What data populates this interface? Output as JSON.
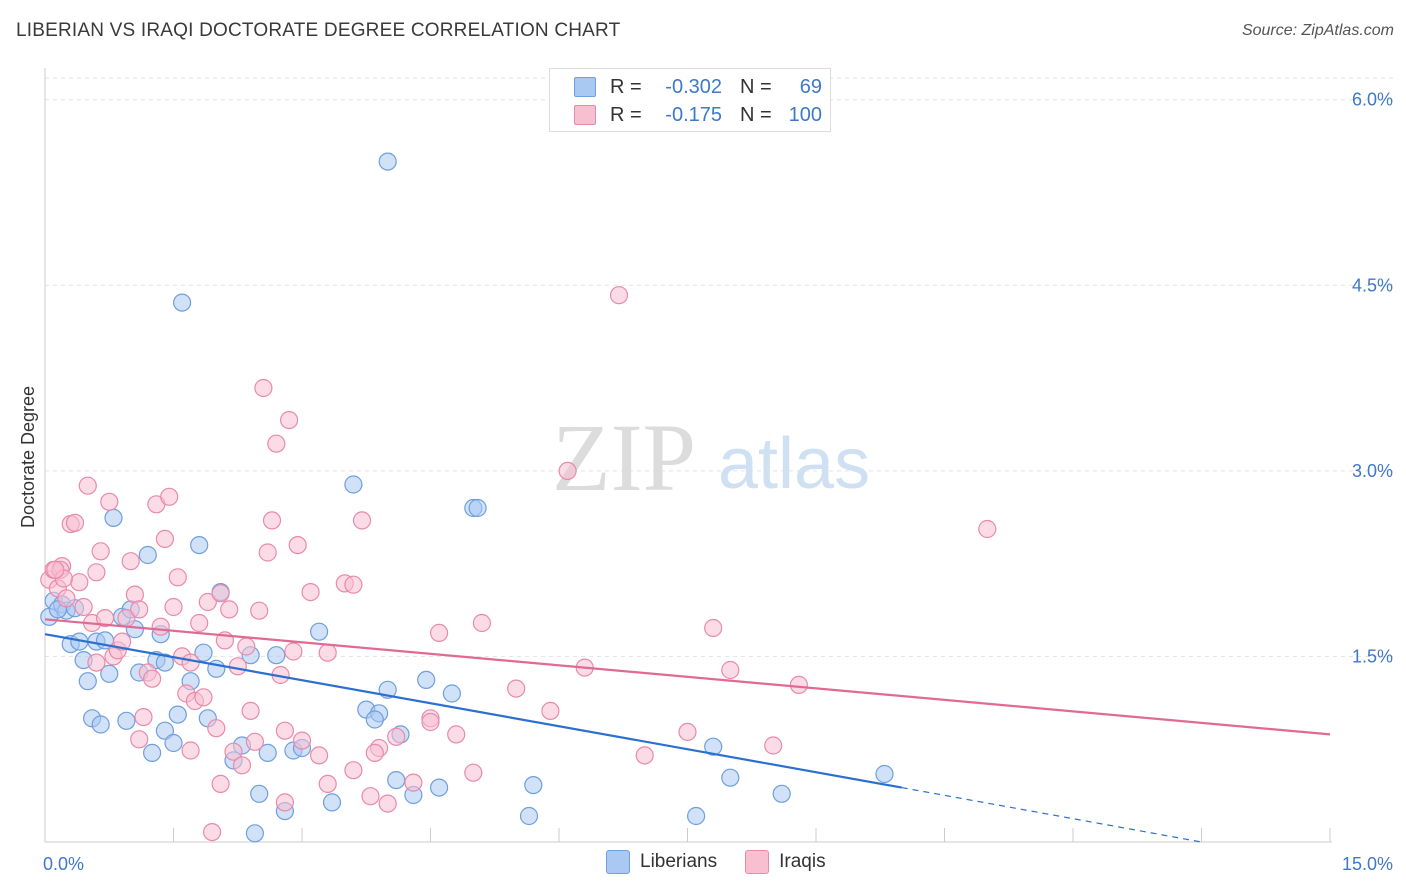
{
  "header": {
    "title": "LIBERIAN VS IRAQI DOCTORATE DEGREE CORRELATION CHART",
    "source": "Source: ZipAtlas.com"
  },
  "watermark": {
    "zip": "ZIP",
    "atlas": "atlas"
  },
  "legend": {
    "rows": [
      {
        "r_label": "R =",
        "r_value": "-0.302",
        "n_label": "N =",
        "n_value": "69",
        "color": "#a9c8f2",
        "border": "#6f9fdc"
      },
      {
        "r_label": "R =",
        "r_value": "-0.175",
        "n_label": "N =",
        "n_value": "100",
        "color": "#f8bfd1",
        "border": "#e98aa9"
      }
    ]
  },
  "bottom_legend": [
    {
      "label": "Liberians",
      "color": "#a9c8f2",
      "border": "#6f9fdc"
    },
    {
      "label": "Iraqis",
      "color": "#f8bfd1",
      "border": "#e98aa9"
    }
  ],
  "chart_data": {
    "type": "scatter",
    "title": "LIBERIAN VS IRAQI DOCTORATE DEGREE CORRELATION CHART",
    "xlabel": "",
    "ylabel": "Doctorate Degree",
    "xlim": [
      0,
      15
    ],
    "ylim": [
      0,
      6.2
    ],
    "x_tick_labels": [
      "0.0%",
      "15.0%"
    ],
    "y_ticks": [
      1.5,
      3.0,
      4.5,
      6.0
    ],
    "y_tick_labels": [
      "1.5%",
      "3.0%",
      "4.5%",
      "6.0%"
    ],
    "grid": true,
    "legend_position": "top-center",
    "series": [
      {
        "name": "Liberians",
        "color": "#6f9fdc",
        "fill": "#a9c8f2",
        "trend_color": "#2b6fd0",
        "trend": {
          "x0": 0,
          "y0": 1.68,
          "x1": 10.0,
          "y1": 0.44,
          "dash_to_x": 13.5,
          "dash_to_y": 0.0
        },
        "points": [
          [
            0.05,
            1.82
          ],
          [
            0.1,
            1.95
          ],
          [
            0.2,
            1.92
          ],
          [
            0.25,
            1.87
          ],
          [
            0.3,
            1.6
          ],
          [
            0.35,
            1.89
          ],
          [
            0.4,
            1.62
          ],
          [
            0.45,
            1.47
          ],
          [
            0.5,
            1.3
          ],
          [
            0.55,
            1.0
          ],
          [
            0.6,
            1.62
          ],
          [
            0.65,
            0.95
          ],
          [
            0.7,
            1.63
          ],
          [
            0.75,
            1.36
          ],
          [
            0.8,
            2.62
          ],
          [
            0.9,
            1.82
          ],
          [
            0.95,
            0.98
          ],
          [
            1.0,
            1.88
          ],
          [
            1.05,
            1.72
          ],
          [
            1.1,
            1.37
          ],
          [
            1.2,
            2.32
          ],
          [
            1.25,
            0.72
          ],
          [
            1.3,
            1.47
          ],
          [
            1.35,
            1.68
          ],
          [
            1.4,
            0.9
          ],
          [
            1.5,
            0.8
          ],
          [
            1.55,
            1.03
          ],
          [
            1.6,
            4.36
          ],
          [
            1.7,
            1.3
          ],
          [
            1.8,
            2.4
          ],
          [
            1.85,
            1.53
          ],
          [
            1.9,
            1.0
          ],
          [
            2.0,
            1.4
          ],
          [
            2.05,
            2.02
          ],
          [
            2.2,
            0.66
          ],
          [
            2.3,
            0.78
          ],
          [
            2.4,
            1.51
          ],
          [
            2.45,
            0.07
          ],
          [
            2.5,
            0.39
          ],
          [
            2.6,
            0.72
          ],
          [
            2.7,
            1.51
          ],
          [
            2.8,
            0.25
          ],
          [
            2.9,
            0.74
          ],
          [
            3.0,
            0.76
          ],
          [
            3.2,
            1.7
          ],
          [
            3.35,
            0.32
          ],
          [
            3.6,
            2.89
          ],
          [
            3.75,
            1.07
          ],
          [
            3.9,
            1.04
          ],
          [
            4.0,
            5.5
          ],
          [
            4.1,
            0.5
          ],
          [
            4.15,
            0.87
          ],
          [
            4.3,
            0.38
          ],
          [
            4.45,
            1.31
          ],
          [
            4.6,
            0.44
          ],
          [
            4.75,
            1.2
          ],
          [
            5.0,
            2.7
          ],
          [
            5.05,
            2.7
          ],
          [
            5.65,
            0.21
          ],
          [
            5.7,
            0.46
          ],
          [
            7.6,
            0.21
          ],
          [
            7.8,
            0.77
          ],
          [
            8.0,
            0.52
          ],
          [
            8.6,
            0.39
          ],
          [
            9.8,
            0.55
          ],
          [
            1.4,
            1.45
          ],
          [
            0.15,
            1.88
          ],
          [
            3.85,
            0.99
          ],
          [
            4.0,
            1.23
          ]
        ]
      },
      {
        "name": "Iraqis",
        "color": "#e98aa9",
        "fill": "#f8bfd1",
        "trend_color": "#e06a93",
        "trend": {
          "x0": 0,
          "y0": 1.8,
          "x1": 15.0,
          "y1": 0.87
        },
        "points": [
          [
            0.05,
            2.12
          ],
          [
            0.1,
            2.2
          ],
          [
            0.15,
            2.05
          ],
          [
            0.2,
            2.23
          ],
          [
            0.25,
            1.97
          ],
          [
            0.3,
            2.57
          ],
          [
            0.35,
            2.58
          ],
          [
            0.4,
            2.1
          ],
          [
            0.45,
            1.9
          ],
          [
            0.5,
            2.88
          ],
          [
            0.55,
            1.77
          ],
          [
            0.6,
            1.45
          ],
          [
            0.65,
            2.35
          ],
          [
            0.7,
            1.81
          ],
          [
            0.75,
            2.75
          ],
          [
            0.8,
            1.5
          ],
          [
            0.85,
            1.55
          ],
          [
            0.9,
            1.62
          ],
          [
            0.95,
            1.81
          ],
          [
            1.0,
            2.27
          ],
          [
            1.05,
            2.0
          ],
          [
            1.1,
            1.88
          ],
          [
            1.15,
            1.01
          ],
          [
            1.2,
            1.37
          ],
          [
            1.25,
            1.32
          ],
          [
            1.3,
            2.73
          ],
          [
            1.35,
            1.74
          ],
          [
            1.4,
            2.45
          ],
          [
            1.45,
            2.79
          ],
          [
            1.5,
            1.9
          ],
          [
            1.55,
            2.14
          ],
          [
            1.6,
            1.5
          ],
          [
            1.65,
            1.2
          ],
          [
            1.7,
            1.45
          ],
          [
            1.75,
            1.14
          ],
          [
            1.8,
            1.77
          ],
          [
            1.85,
            1.17
          ],
          [
            1.9,
            1.94
          ],
          [
            1.95,
            0.08
          ],
          [
            2.0,
            0.92
          ],
          [
            2.05,
            2.01
          ],
          [
            2.1,
            1.63
          ],
          [
            2.15,
            1.88
          ],
          [
            2.2,
            0.73
          ],
          [
            2.25,
            1.42
          ],
          [
            2.3,
            0.62
          ],
          [
            2.35,
            1.58
          ],
          [
            2.4,
            1.06
          ],
          [
            2.45,
            0.81
          ],
          [
            2.5,
            1.87
          ],
          [
            2.55,
            3.67
          ],
          [
            2.6,
            2.34
          ],
          [
            2.65,
            2.6
          ],
          [
            2.7,
            3.22
          ],
          [
            2.75,
            1.35
          ],
          [
            2.8,
            0.32
          ],
          [
            2.85,
            3.41
          ],
          [
            2.9,
            1.54
          ],
          [
            2.95,
            2.4
          ],
          [
            3.0,
            0.82
          ],
          [
            3.1,
            2.02
          ],
          [
            3.2,
            0.7
          ],
          [
            3.3,
            0.47
          ],
          [
            3.5,
            2.09
          ],
          [
            3.6,
            0.58
          ],
          [
            3.7,
            2.6
          ],
          [
            3.8,
            0.37
          ],
          [
            3.9,
            0.76
          ],
          [
            4.0,
            0.31
          ],
          [
            4.1,
            0.85
          ],
          [
            4.3,
            0.48
          ],
          [
            4.5,
            1.0
          ],
          [
            4.6,
            1.69
          ],
          [
            4.8,
            0.87
          ],
          [
            5.0,
            0.56
          ],
          [
            5.1,
            1.77
          ],
          [
            5.5,
            1.24
          ],
          [
            5.9,
            1.06
          ],
          [
            6.1,
            3.0
          ],
          [
            6.3,
            1.41
          ],
          [
            6.7,
            4.42
          ],
          [
            7.0,
            0.7
          ],
          [
            7.5,
            0.89
          ],
          [
            7.8,
            1.73
          ],
          [
            8.0,
            1.39
          ],
          [
            8.5,
            0.78
          ],
          [
            8.8,
            1.27
          ],
          [
            11.0,
            2.53
          ],
          [
            0.18,
            2.2
          ],
          [
            0.22,
            2.13
          ],
          [
            0.6,
            2.18
          ],
          [
            1.7,
            0.74
          ],
          [
            2.8,
            0.9
          ],
          [
            3.3,
            1.53
          ],
          [
            3.6,
            2.08
          ],
          [
            3.85,
            0.72
          ],
          [
            4.5,
            0.97
          ],
          [
            2.05,
            0.47
          ],
          [
            1.1,
            0.83
          ],
          [
            0.12,
            2.2
          ]
        ]
      }
    ]
  }
}
